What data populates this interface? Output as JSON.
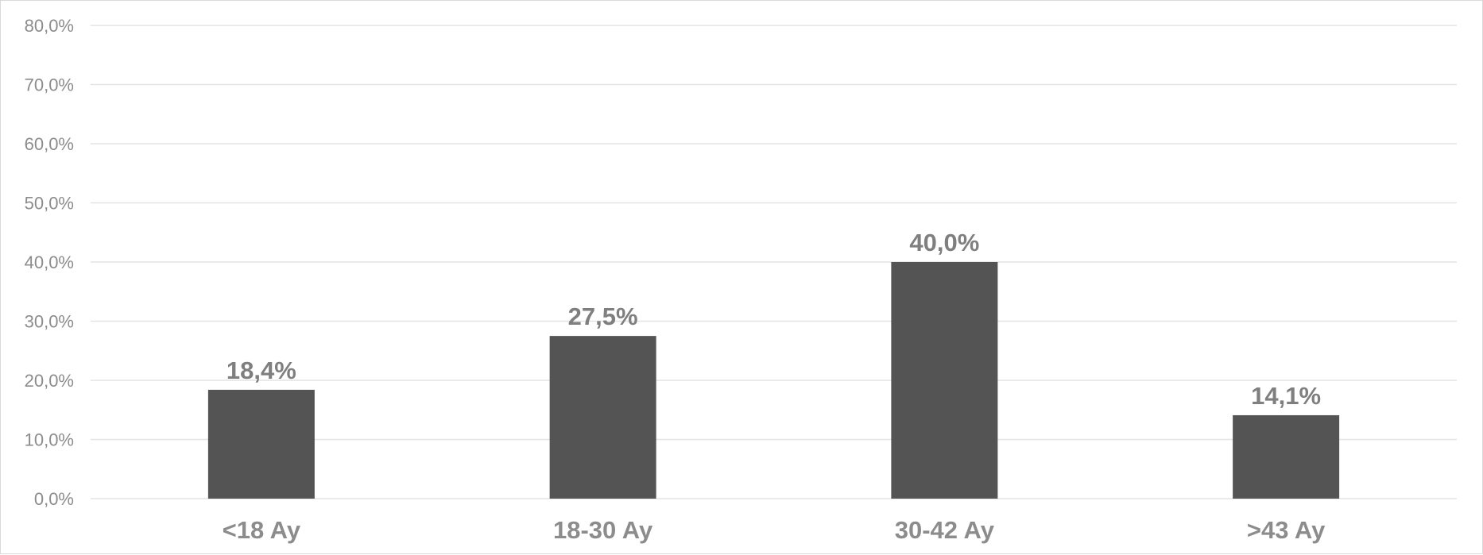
{
  "chart_data": {
    "type": "bar",
    "categories": [
      "<18 Ay",
      "18-30 Ay",
      "30-42 Ay",
      ">43 Ay"
    ],
    "values": [
      18.4,
      27.5,
      40.0,
      14.1
    ],
    "data_labels": [
      "18,4%",
      "27,5%",
      "40,0%",
      "14,1%"
    ],
    "ylim": [
      0,
      80
    ],
    "yticks": [
      0,
      10,
      20,
      30,
      40,
      50,
      60,
      70,
      80
    ],
    "ytick_labels": [
      "0,0%",
      "10,0%",
      "20,0%",
      "30,0%",
      "40,0%",
      "50,0%",
      "60,0%",
      "70,0%",
      "80,0%"
    ],
    "grid": true,
    "legend": "none",
    "bar_color": "#545454"
  }
}
